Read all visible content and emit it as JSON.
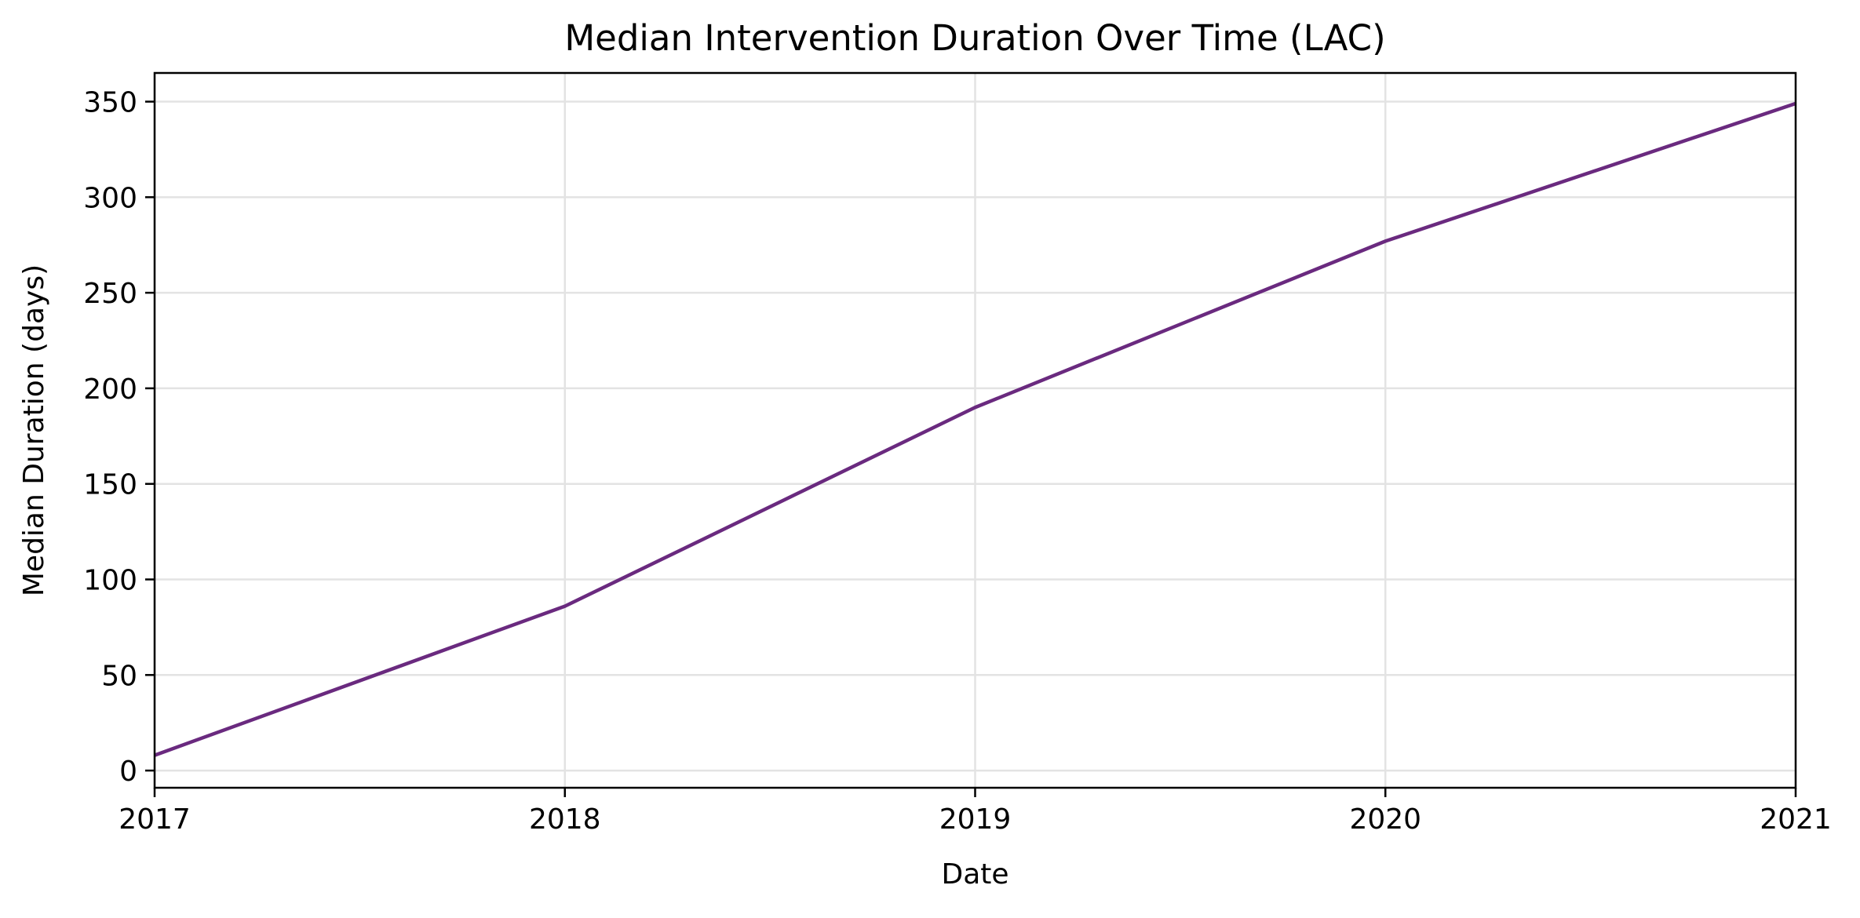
{
  "chart_data": {
    "type": "line",
    "title": "Median Intervention Duration Over Time (LAC)",
    "xlabel": "Date",
    "ylabel": "Median Duration (days)",
    "x": [
      "2017",
      "2018",
      "2019",
      "2020",
      "2021"
    ],
    "series": [
      {
        "values": [
          8,
          86,
          190,
          277,
          349
        ],
        "color": "#6a2a7f"
      }
    ],
    "xlim": [
      "2017",
      "2021"
    ],
    "ylim": [
      -9,
      365
    ],
    "x_ticks": [
      "2017",
      "2018",
      "2019",
      "2020",
      "2021"
    ],
    "y_ticks": [
      0,
      50,
      100,
      150,
      200,
      250,
      300,
      350
    ],
    "grid": true,
    "legend": "none"
  }
}
